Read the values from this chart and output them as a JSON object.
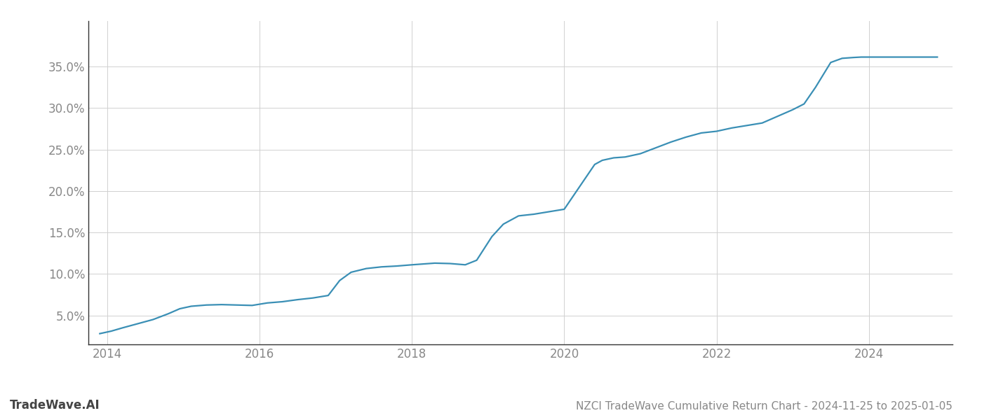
{
  "title": "NZCI TradeWave Cumulative Return Chart - 2024-11-25 to 2025-01-05",
  "watermark": "TradeWave.AI",
  "line_color": "#3a8fb5",
  "line_width": 1.6,
  "background_color": "#ffffff",
  "grid_color": "#d0d0d0",
  "tick_label_color": "#888888",
  "title_color": "#888888",
  "watermark_color": "#444444",
  "x_values": [
    2013.9,
    2014.05,
    2014.2,
    2014.4,
    2014.6,
    2014.8,
    2014.95,
    2015.1,
    2015.3,
    2015.5,
    2015.7,
    2015.9,
    2016.1,
    2016.3,
    2016.5,
    2016.7,
    2016.9,
    2017.05,
    2017.2,
    2017.4,
    2017.6,
    2017.8,
    2018.0,
    2018.15,
    2018.3,
    2018.5,
    2018.7,
    2018.85,
    2019.05,
    2019.2,
    2019.4,
    2019.6,
    2019.8,
    2020.0,
    2020.2,
    2020.4,
    2020.5,
    2020.65,
    2020.8,
    2021.0,
    2021.2,
    2021.4,
    2021.6,
    2021.8,
    2022.0,
    2022.2,
    2022.4,
    2022.6,
    2022.8,
    2023.0,
    2023.15,
    2023.3,
    2023.5,
    2023.65,
    2023.8,
    2023.9,
    2024.0,
    2024.1,
    2024.3,
    2024.5,
    2024.7,
    2024.9
  ],
  "y_values": [
    2.8,
    3.1,
    3.5,
    4.0,
    4.5,
    5.2,
    5.8,
    6.1,
    6.25,
    6.3,
    6.25,
    6.2,
    6.5,
    6.65,
    6.9,
    7.1,
    7.4,
    9.2,
    10.2,
    10.65,
    10.85,
    10.95,
    11.1,
    11.2,
    11.3,
    11.25,
    11.1,
    11.65,
    14.5,
    16.0,
    17.0,
    17.2,
    17.5,
    17.8,
    20.5,
    23.2,
    23.7,
    24.0,
    24.1,
    24.5,
    25.2,
    25.9,
    26.5,
    27.0,
    27.2,
    27.6,
    27.9,
    28.2,
    29.0,
    29.8,
    30.5,
    32.5,
    35.5,
    36.0,
    36.1,
    36.15,
    36.15,
    36.15,
    36.15,
    36.15,
    36.15,
    36.15
  ],
  "xlim": [
    2013.75,
    2025.1
  ],
  "ylim": [
    1.5,
    40.5
  ],
  "yticks": [
    5.0,
    10.0,
    15.0,
    20.0,
    25.0,
    30.0,
    35.0
  ],
  "xticks": [
    2014,
    2016,
    2018,
    2020,
    2022,
    2024
  ],
  "fontsize_ticks": 12,
  "fontsize_title": 11,
  "fontsize_watermark": 12
}
